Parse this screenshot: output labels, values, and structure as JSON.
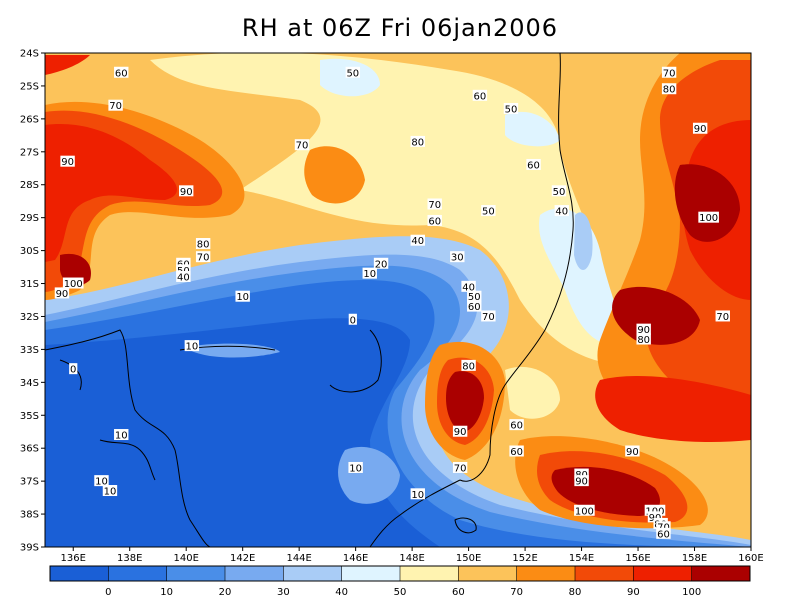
{
  "title": "RH at 06Z Fri 06jan2006",
  "lat_labels": [
    "24S",
    "25S",
    "26S",
    "27S",
    "28S",
    "29S",
    "30S",
    "31S",
    "32S",
    "33S",
    "34S",
    "35S",
    "36S",
    "37S",
    "38S",
    "39S"
  ],
  "lon_labels": [
    "136E",
    "138E",
    "140E",
    "142E",
    "144E",
    "146E",
    "148E",
    "150E",
    "152E",
    "154E",
    "156E",
    "158E",
    "160E"
  ],
  "colorbar": {
    "labels": [
      "0",
      "10",
      "20",
      "30",
      "40",
      "50",
      "60",
      "70",
      "80",
      "90",
      "100"
    ],
    "colors": [
      "#1a5fd6",
      "#2a72e0",
      "#4a8ee8",
      "#78aaf0",
      "#a9ccf6",
      "#dff4ff",
      "#fff3b0",
      "#fcc35a",
      "#fb8c14",
      "#f24a08",
      "#ee2000",
      "#aa0000"
    ]
  },
  "contour_labels": [
    {
      "text": "60",
      "lon": 137.7,
      "lat": 24.6
    },
    {
      "text": "50",
      "lon": 145.9,
      "lat": 24.6
    },
    {
      "text": "70",
      "lon": 157.1,
      "lat": 24.6
    },
    {
      "text": "80",
      "lon": 157.1,
      "lat": 25.1
    },
    {
      "text": "60",
      "lon": 150.4,
      "lat": 25.3
    },
    {
      "text": "70",
      "lon": 137.5,
      "lat": 25.6
    },
    {
      "text": "50",
      "lon": 151.5,
      "lat": 25.7
    },
    {
      "text": "90",
      "lon": 158.2,
      "lat": 26.3
    },
    {
      "text": "70",
      "lon": 144.1,
      "lat": 26.8
    },
    {
      "text": "80",
      "lon": 148.2,
      "lat": 26.7
    },
    {
      "text": "90",
      "lon": 135.8,
      "lat": 27.3
    },
    {
      "text": "60",
      "lon": 152.3,
      "lat": 27.4
    },
    {
      "text": "90",
      "lon": 140.0,
      "lat": 28.2
    },
    {
      "text": "50",
      "lon": 153.2,
      "lat": 28.2
    },
    {
      "text": "70",
      "lon": 148.8,
      "lat": 28.6
    },
    {
      "text": "50",
      "lon": 150.7,
      "lat": 28.8
    },
    {
      "text": "40",
      "lon": 153.3,
      "lat": 28.8
    },
    {
      "text": "100",
      "lon": 158.5,
      "lat": 29.0
    },
    {
      "text": "60",
      "lon": 148.8,
      "lat": 29.1
    },
    {
      "text": "80",
      "lon": 140.6,
      "lat": 29.8
    },
    {
      "text": "40",
      "lon": 148.2,
      "lat": 29.7
    },
    {
      "text": "70",
      "lon": 140.6,
      "lat": 30.2
    },
    {
      "text": "30",
      "lon": 149.6,
      "lat": 30.2
    },
    {
      "text": "60",
      "lon": 139.9,
      "lat": 30.4
    },
    {
      "text": "20",
      "lon": 146.9,
      "lat": 30.4
    },
    {
      "text": "50",
      "lon": 139.9,
      "lat": 30.6
    },
    {
      "text": "40",
      "lon": 139.9,
      "lat": 30.8
    },
    {
      "text": "10",
      "lon": 146.5,
      "lat": 30.7
    },
    {
      "text": "100",
      "lon": 136.0,
      "lat": 31.0
    },
    {
      "text": "90",
      "lon": 135.6,
      "lat": 31.3
    },
    {
      "text": "40",
      "lon": 150.0,
      "lat": 31.1
    },
    {
      "text": "10",
      "lon": 142.0,
      "lat": 31.4
    },
    {
      "text": "50",
      "lon": 150.2,
      "lat": 31.4
    },
    {
      "text": "60",
      "lon": 150.2,
      "lat": 31.7
    },
    {
      "text": "70",
      "lon": 150.7,
      "lat": 32.0
    },
    {
      "text": "70",
      "lon": 159.0,
      "lat": 32.0
    },
    {
      "text": "0",
      "lon": 145.9,
      "lat": 32.1
    },
    {
      "text": "90",
      "lon": 156.2,
      "lat": 32.4
    },
    {
      "text": "80",
      "lon": 156.2,
      "lat": 32.7
    },
    {
      "text": "10",
      "lon": 140.2,
      "lat": 32.9
    },
    {
      "text": "80",
      "lon": 150.0,
      "lat": 33.5
    },
    {
      "text": "0",
      "lon": 136.0,
      "lat": 33.6
    },
    {
      "text": "60",
      "lon": 151.7,
      "lat": 35.3
    },
    {
      "text": "10",
      "lon": 137.7,
      "lat": 35.6
    },
    {
      "text": "90",
      "lon": 149.7,
      "lat": 35.5
    },
    {
      "text": "60",
      "lon": 151.7,
      "lat": 36.1
    },
    {
      "text": "90",
      "lon": 155.8,
      "lat": 36.1
    },
    {
      "text": "70",
      "lon": 149.7,
      "lat": 36.6
    },
    {
      "text": "10",
      "lon": 146.0,
      "lat": 36.6
    },
    {
      "text": "80",
      "lon": 154.0,
      "lat": 36.8
    },
    {
      "text": "90",
      "lon": 154.0,
      "lat": 37.0
    },
    {
      "text": "10",
      "lon": 137.0,
      "lat": 37.0
    },
    {
      "text": "10",
      "lon": 137.3,
      "lat": 37.3
    },
    {
      "text": "10",
      "lon": 148.2,
      "lat": 37.4
    },
    {
      "text": "100",
      "lon": 154.1,
      "lat": 37.9
    },
    {
      "text": "100",
      "lon": 156.6,
      "lat": 37.9
    },
    {
      "text": "90",
      "lon": 156.6,
      "lat": 38.1
    },
    {
      "text": "80",
      "lon": 156.8,
      "lat": 38.3
    },
    {
      "text": "70",
      "lon": 156.9,
      "lat": 38.4
    },
    {
      "text": "60",
      "lon": 156.9,
      "lat": 38.6
    }
  ]
}
